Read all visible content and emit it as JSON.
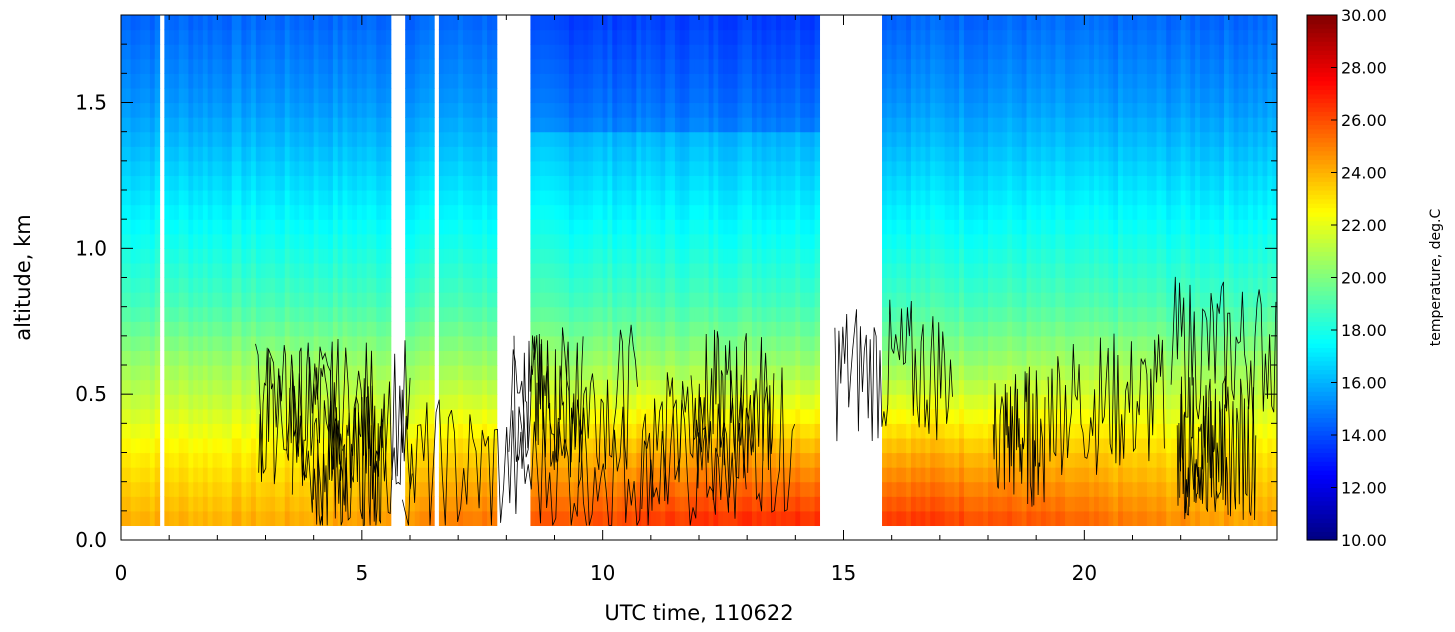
{
  "chart_data": {
    "type": "heatmap",
    "title": "",
    "xlabel": "UTC time, 110622",
    "ylabel": "altitude, km",
    "xlim": [
      0,
      24
    ],
    "ylim": [
      0,
      1.8
    ],
    "x_ticks": [
      0,
      5,
      10,
      15,
      20
    ],
    "x_tick_labels": [
      "0",
      "5",
      "10",
      "15",
      "20"
    ],
    "y_ticks": [
      0,
      0.5,
      1.0,
      1.5
    ],
    "y_tick_labels": [
      "0.0",
      "0.5",
      "1.0",
      "1.5"
    ],
    "colorbar": {
      "label": "temperature, deg.C",
      "range": [
        10,
        30
      ],
      "ticks": [
        10,
        12,
        14,
        16,
        18,
        20,
        22,
        24,
        26,
        28,
        30
      ],
      "tick_labels": [
        "10.00",
        "12.00",
        "14.00",
        "16.00",
        "18.00",
        "20.00",
        "22.00",
        "24.00",
        "26.00",
        "28.00",
        "30.00"
      ],
      "colormap": "jet"
    },
    "temperature_profile": {
      "altitude_km": [
        0.05,
        0.3,
        0.5,
        0.8,
        1.0,
        1.3,
        1.5,
        1.8
      ],
      "temperature_degC": [
        25.5,
        23.5,
        21.5,
        19.0,
        18.0,
        16.5,
        15.5,
        14.5
      ]
    },
    "data_gaps_hours": [
      [
        0.77,
        0.87
      ],
      [
        5.65,
        5.9
      ],
      [
        6.5,
        6.65
      ],
      [
        7.85,
        8.55
      ],
      [
        14.5,
        15.85
      ]
    ],
    "contour_overlay": "black contour lines"
  }
}
